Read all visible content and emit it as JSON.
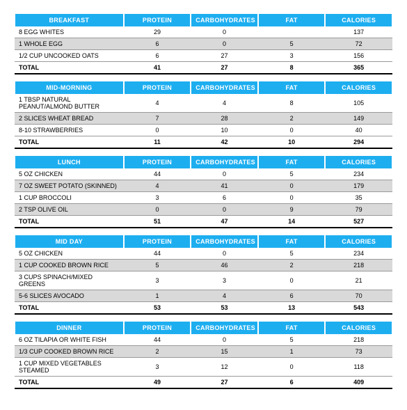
{
  "columns": [
    "PROTEIN",
    "CARBOHYDRATES",
    "FAT",
    "CALORIES"
  ],
  "total_label": "TOTAL",
  "header_bg": "#1daef0",
  "alt_bg": "#d9d9d9",
  "sections": [
    {
      "title": "BREAKFAST",
      "rows": [
        {
          "name": "8 EGG WHITES",
          "vals": [
            "29",
            "0",
            "",
            "137"
          ]
        },
        {
          "name": "1 WHOLE EGG",
          "vals": [
            "6",
            "0",
            "5",
            "72"
          ]
        },
        {
          "name": "1/2 CUP UNCOOKED OATS",
          "vals": [
            "6",
            "27",
            "3",
            "156"
          ]
        }
      ],
      "total": [
        "41",
        "27",
        "8",
        "365"
      ]
    },
    {
      "title": "MID-MORNING",
      "rows": [
        {
          "name": "1 TBSP NATURAL PEANUT/ALMOND BUTTER",
          "vals": [
            "4",
            "4",
            "8",
            "105"
          ]
        },
        {
          "name": "2 SLICES WHEAT BREAD",
          "vals": [
            "7",
            "28",
            "2",
            "149"
          ]
        },
        {
          "name": "8-10 STRAWBERRIES",
          "vals": [
            "0",
            "10",
            "0",
            "40"
          ]
        }
      ],
      "total": [
        "11",
        "42",
        "10",
        "294"
      ]
    },
    {
      "title": "LUNCH",
      "rows": [
        {
          "name": "5 OZ CHICKEN",
          "vals": [
            "44",
            "0",
            "5",
            "234"
          ]
        },
        {
          "name": "7 OZ SWEET POTATO (SKINNED)",
          "vals": [
            "4",
            "41",
            "0",
            "179"
          ]
        },
        {
          "name": "1 CUP BROCCOLI",
          "vals": [
            "3",
            "6",
            "0",
            "35"
          ]
        },
        {
          "name": "2 TSP OLIVE OIL",
          "vals": [
            "0",
            "0",
            "9",
            "79"
          ]
        }
      ],
      "total": [
        "51",
        "47",
        "14",
        "527"
      ]
    },
    {
      "title": "MID DAY",
      "rows": [
        {
          "name": "5 OZ CHICKEN",
          "vals": [
            "44",
            "0",
            "5",
            "234"
          ]
        },
        {
          "name": "1 CUP COOKED BROWN RICE",
          "vals": [
            "5",
            "46",
            "2",
            "218"
          ]
        },
        {
          "name": "3 CUPS SPINACH/MIXED GREENS",
          "vals": [
            "3",
            "3",
            "0",
            "21"
          ]
        },
        {
          "name": "5-6 SLICES AVOCADO",
          "vals": [
            "1",
            "4",
            "6",
            "70"
          ]
        }
      ],
      "total": [
        "53",
        "53",
        "13",
        "543"
      ]
    },
    {
      "title": "DINNER",
      "rows": [
        {
          "name": "6 OZ TILAPIA OR WHITE FISH",
          "vals": [
            "44",
            "0",
            "5",
            "218"
          ]
        },
        {
          "name": "1/3 CUP COOKED BROWN RICE",
          "vals": [
            "2",
            "15",
            "1",
            "73"
          ]
        },
        {
          "name": "1 CUP MIXED VEGETABLES STEAMED",
          "vals": [
            "3",
            "12",
            "0",
            "118"
          ]
        }
      ],
      "total": [
        "49",
        "27",
        "6",
        "409"
      ]
    }
  ]
}
